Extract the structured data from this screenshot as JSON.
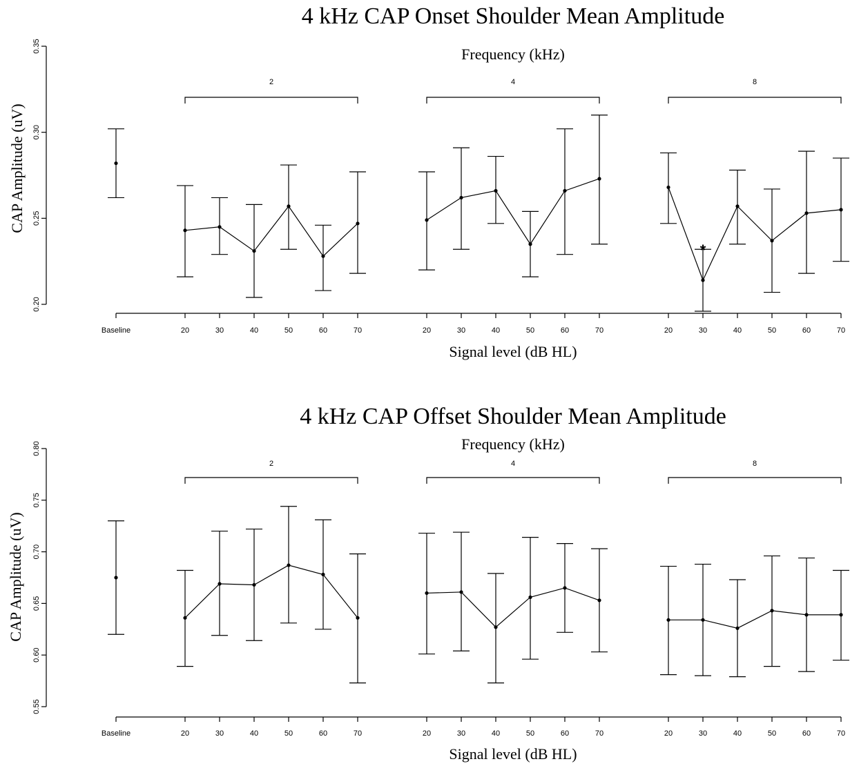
{
  "chart_data": [
    {
      "type": "line",
      "title": "4 kHz CAP Onset Shoulder Mean Amplitude",
      "subtitle": "Frequency (kHz)",
      "xlabel": "Signal level (dB HL)",
      "ylabel": "CAP Amplitude (uV)",
      "ylim": [
        0.2,
        0.35
      ],
      "yticks": [
        "0.20",
        "0.25",
        "0.30",
        "0.35"
      ],
      "grid": false,
      "baseline": {
        "label": "Baseline",
        "mean": 0.282,
        "lower": 0.262,
        "upper": 0.302
      },
      "groups": [
        {
          "name": "2",
          "levels": [
            "20",
            "30",
            "40",
            "50",
            "60",
            "70"
          ],
          "mean": [
            0.243,
            0.245,
            0.231,
            0.257,
            0.228,
            0.247
          ],
          "lower": [
            0.216,
            0.229,
            0.204,
            0.232,
            0.208,
            0.218
          ],
          "upper": [
            0.269,
            0.262,
            0.258,
            0.281,
            0.246,
            0.277
          ]
        },
        {
          "name": "4",
          "levels": [
            "20",
            "30",
            "40",
            "50",
            "60",
            "70"
          ],
          "mean": [
            0.249,
            0.262,
            0.266,
            0.235,
            0.266,
            0.273
          ],
          "lower": [
            0.22,
            0.232,
            0.247,
            0.216,
            0.229,
            0.235
          ],
          "upper": [
            0.277,
            0.291,
            0.286,
            0.254,
            0.302,
            0.31
          ]
        },
        {
          "name": "8",
          "levels": [
            "20",
            "30",
            "40",
            "50",
            "60",
            "70"
          ],
          "mean": [
            0.268,
            0.214,
            0.257,
            0.237,
            0.253,
            0.255
          ],
          "lower": [
            0.247,
            0.196,
            0.235,
            0.207,
            0.218,
            0.225
          ],
          "upper": [
            0.288,
            0.232,
            0.278,
            0.267,
            0.289,
            0.285
          ]
        }
      ],
      "annotations": [
        {
          "text": "*",
          "group": "8",
          "level": "30"
        }
      ]
    },
    {
      "type": "line",
      "title": "4 kHz CAP Offset Shoulder Mean Amplitude",
      "subtitle": "Frequency (kHz)",
      "xlabel": "Signal level (dB HL)",
      "ylabel": "CAP Amplitude (uV)",
      "ylim": [
        0.55,
        0.8
      ],
      "yticks": [
        "0.55",
        "0.60",
        "0.65",
        "0.70",
        "0.75",
        "0.80"
      ],
      "grid": false,
      "baseline": {
        "label": "Baseline",
        "mean": 0.675,
        "lower": 0.62,
        "upper": 0.73
      },
      "groups": [
        {
          "name": "2",
          "levels": [
            "20",
            "30",
            "40",
            "50",
            "60",
            "70"
          ],
          "mean": [
            0.636,
            0.669,
            0.668,
            0.687,
            0.678,
            0.636
          ],
          "lower": [
            0.589,
            0.619,
            0.614,
            0.631,
            0.625,
            0.573
          ],
          "upper": [
            0.682,
            0.72,
            0.722,
            0.744,
            0.731,
            0.698
          ]
        },
        {
          "name": "4",
          "levels": [
            "20",
            "30",
            "40",
            "50",
            "60",
            "70"
          ],
          "mean": [
            0.66,
            0.661,
            0.627,
            0.656,
            0.665,
            0.653
          ],
          "lower": [
            0.601,
            0.604,
            0.573,
            0.596,
            0.622,
            0.603
          ],
          "upper": [
            0.718,
            0.719,
            0.679,
            0.714,
            0.708,
            0.703
          ]
        },
        {
          "name": "8",
          "levels": [
            "20",
            "30",
            "40",
            "50",
            "60",
            "70"
          ],
          "mean": [
            0.634,
            0.634,
            0.626,
            0.643,
            0.639,
            0.639
          ],
          "lower": [
            0.581,
            0.58,
            0.579,
            0.589,
            0.584,
            0.595
          ],
          "upper": [
            0.686,
            0.688,
            0.673,
            0.696,
            0.694,
            0.682
          ]
        }
      ],
      "annotations": []
    }
  ]
}
